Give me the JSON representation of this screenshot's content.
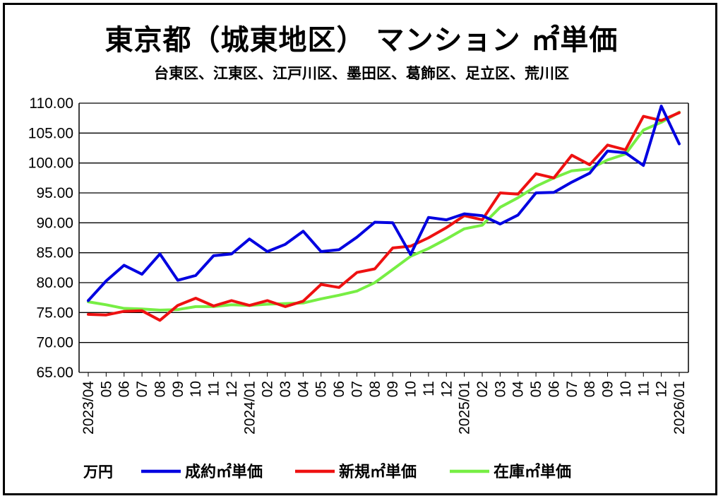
{
  "chart_data": {
    "type": "line",
    "title": "東京都（城東地区） マンション ㎡単価",
    "subtitle": "台東区、江東区、江戸川区、墨田区、葛飾区、足立区、荒川区",
    "unit_label": "万円",
    "ylim": [
      65,
      110
    ],
    "y_ticks": [
      "65.00",
      "70.00",
      "75.00",
      "80.00",
      "85.00",
      "90.00",
      "95.00",
      "100.00",
      "105.00",
      "110.00"
    ],
    "grid": true,
    "legend_position": "bottom",
    "x_labels": [
      "2023/04",
      "05",
      "06",
      "07",
      "08",
      "09",
      "10",
      "11",
      "12",
      "2024/01",
      "02",
      "03",
      "04",
      "05",
      "06",
      "07",
      "08",
      "09",
      "10",
      "11",
      "12",
      "2025/01",
      "02",
      "03",
      "04",
      "05",
      "06",
      "07",
      "08",
      "09",
      "10",
      "11",
      "12",
      "2026/01"
    ],
    "series": [
      {
        "name": "成約㎡単価",
        "color": "#0000e0",
        "values": [
          77.0,
          80.3,
          82.9,
          81.4,
          84.8,
          80.4,
          81.2,
          84.5,
          84.8,
          87.3,
          85.2,
          86.4,
          88.6,
          85.2,
          85.5,
          87.6,
          90.1,
          90.0,
          84.7,
          90.9,
          90.5,
          91.5,
          91.2,
          89.8,
          91.3,
          95.0,
          95.1,
          96.8,
          98.3,
          102.0,
          101.7,
          99.6,
          109.5,
          103.2
        ]
      },
      {
        "name": "新規㎡単価",
        "color": "#ee1111",
        "values": [
          74.7,
          74.6,
          75.2,
          75.3,
          73.7,
          76.2,
          77.4,
          76.1,
          77.0,
          76.2,
          77.0,
          76.0,
          76.9,
          79.7,
          79.2,
          81.7,
          82.3,
          85.8,
          86.1,
          87.5,
          89.2,
          91.2,
          90.5,
          95.0,
          94.8,
          98.2,
          97.5,
          101.3,
          99.7,
          103.0,
          102.2,
          107.8,
          107.1,
          108.4
        ]
      },
      {
        "name": "在庫㎡単価",
        "color": "#77ee44",
        "values": [
          76.8,
          76.3,
          75.7,
          75.6,
          75.4,
          75.5,
          76.0,
          76.0,
          76.3,
          76.2,
          76.4,
          76.5,
          76.6,
          77.3,
          77.9,
          78.6,
          80.0,
          82.2,
          84.4,
          85.7,
          87.3,
          89.0,
          89.6,
          92.6,
          94.2,
          96.1,
          97.5,
          98.7,
          99.0,
          100.5,
          101.5,
          105.5,
          106.8,
          108.5
        ]
      }
    ]
  }
}
